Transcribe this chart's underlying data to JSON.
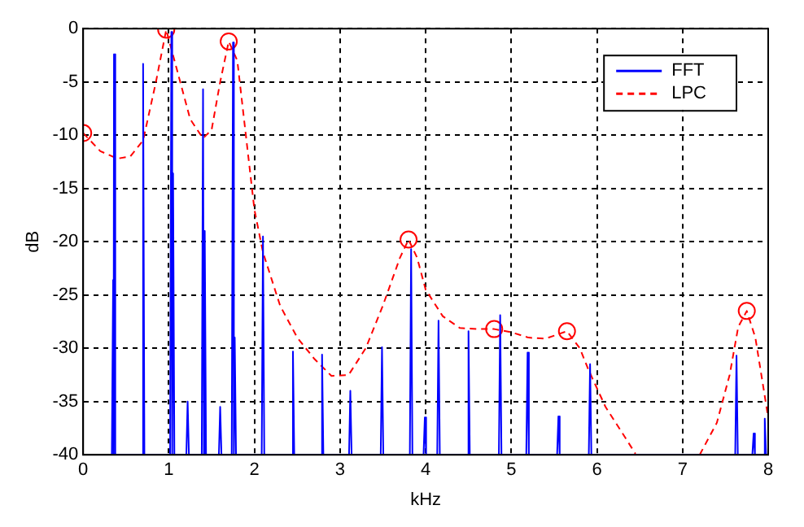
{
  "chart_data": {
    "type": "line",
    "xlabel": "kHz",
    "ylabel": "dB",
    "xlim": [
      0,
      8
    ],
    "ylim": [
      -40,
      0
    ],
    "xticks": [
      0,
      1,
      2,
      3,
      4,
      5,
      6,
      7,
      8
    ],
    "yticks": [
      -40,
      -35,
      -30,
      -25,
      -20,
      -15,
      -10,
      -5,
      0
    ],
    "grid": true,
    "legend": "top right",
    "series": [
      {
        "name": "FFT",
        "color": "#0000ff",
        "line_style": "solid",
        "marker": "none",
        "x": [
          0.335,
          0.35,
          0.355,
          0.36,
          0.375,
          0.685,
          0.7,
          0.715,
          1.015,
          1.03,
          1.04,
          1.05,
          1.065,
          1.205,
          1.22,
          1.235,
          1.385,
          1.4,
          1.41,
          1.42,
          1.435,
          1.585,
          1.6,
          1.615,
          1.735,
          1.75,
          1.76,
          1.77,
          1.785,
          2.085,
          2.1,
          2.115,
          2.435,
          2.45,
          2.465,
          2.775,
          2.79,
          2.805,
          3.105,
          3.12,
          3.135,
          3.475,
          3.49,
          3.505,
          3.815,
          3.83,
          3.845,
          3.975,
          3.99,
          4.005,
          4.135,
          4.15,
          4.165,
          4.485,
          4.5,
          4.515,
          4.855,
          4.87,
          4.885,
          5.175,
          5.19,
          5.205,
          5.535,
          5.55,
          5.565,
          5.905,
          5.92,
          5.935,
          7.615,
          7.63,
          7.645,
          7.815,
          7.83,
          7.845,
          7.945,
          7.96,
          7.975
        ],
        "values": [
          -40,
          -23.6,
          -40,
          -2.4,
          -40,
          -40,
          -3.3,
          -40,
          -40,
          -0.3,
          -40,
          -13.6,
          -40,
          -40,
          -35,
          -40,
          -40,
          -5.7,
          -40,
          -19,
          -40,
          -40,
          -35.5,
          -40,
          -40,
          -1.3,
          -40,
          -29,
          -40,
          -40,
          -19.5,
          -40,
          -40,
          -30.3,
          -40,
          -40,
          -30.6,
          -40,
          -40,
          -34,
          -40,
          -40,
          -29.9,
          -40,
          -40,
          -20.7,
          -40,
          -40,
          -36.5,
          -40,
          -40,
          -27.4,
          -40,
          -40,
          -28.4,
          -40,
          -40,
          -26.9,
          -40,
          -40,
          -30.4,
          -40,
          -40,
          -36.4,
          -40,
          -40,
          -31.5,
          -40,
          -40,
          -30.7,
          -40,
          -40,
          -38,
          -40,
          -40,
          -36.6,
          -40
        ]
      },
      {
        "name": "LPC",
        "color": "#ff0000",
        "line_style": "dashed",
        "marker": "none",
        "x": [
          0,
          0.2,
          0.4,
          0.55,
          0.7,
          0.85,
          0.97,
          1.1,
          1.25,
          1.4,
          1.5,
          1.6,
          1.7,
          1.8,
          1.9,
          2.0,
          2.1,
          2.3,
          2.5,
          2.7,
          2.9,
          3.1,
          3.3,
          3.5,
          3.7,
          3.8,
          3.9,
          4.0,
          4.2,
          4.4,
          4.6,
          4.8,
          5.0,
          5.2,
          5.4,
          5.65,
          5.8,
          5.9,
          6.1,
          6.3,
          6.45,
          6.8,
          7.2,
          7.4,
          7.55,
          7.65,
          7.75,
          7.85,
          7.95,
          8.0
        ],
        "values": [
          -9.8,
          -11.5,
          -12.2,
          -12,
          -10.5,
          -5,
          -0.1,
          -4,
          -8.5,
          -10.3,
          -9.5,
          -5,
          -1.2,
          -3,
          -10,
          -17,
          -21,
          -26,
          -29,
          -31,
          -32.6,
          -32.5,
          -30,
          -26,
          -21.5,
          -19.8,
          -21.5,
          -24.5,
          -27,
          -28.1,
          -28.2,
          -28.2,
          -28.5,
          -29,
          -29.1,
          -28.4,
          -30,
          -32,
          -35.5,
          -38,
          -39.9,
          null,
          -40,
          -37,
          -32.5,
          -28,
          -26.5,
          -29,
          -34,
          -36.5
        ]
      },
      {
        "type": "scatter",
        "color": "#ff0000",
        "marker": "circle",
        "x": [
          0,
          0.97,
          1.7,
          3.8,
          4.8,
          5.65,
          7.75
        ],
        "values": [
          -9.8,
          -0.1,
          -1.2,
          -19.8,
          -28.2,
          -28.4,
          -26.5
        ]
      }
    ]
  }
}
